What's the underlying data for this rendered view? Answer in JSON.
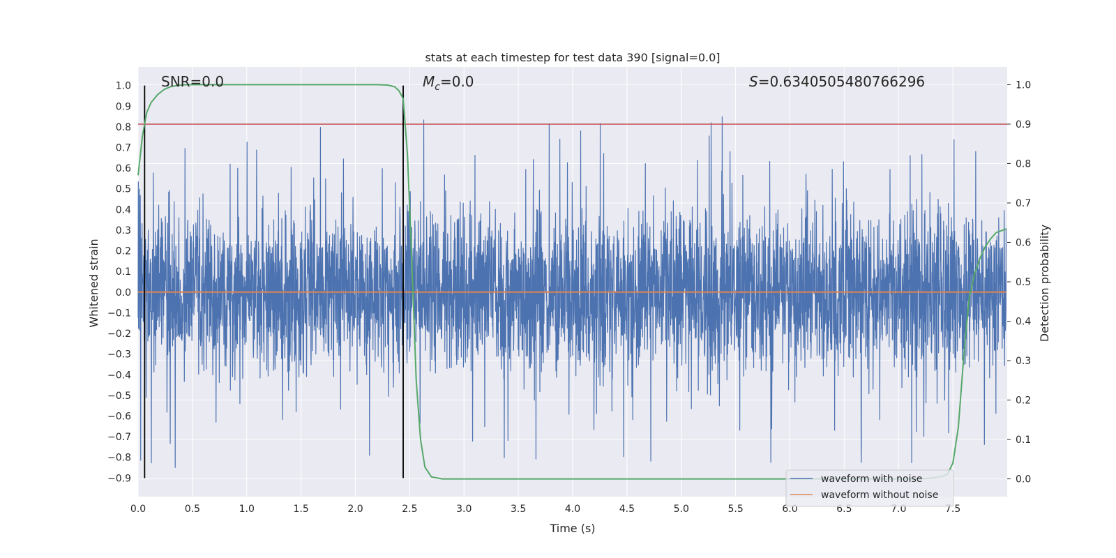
{
  "chart_data": {
    "type": "line",
    "title": "stats at each timestep for test data 390 [signal=0.0]",
    "xlabel": "Time (s)",
    "ylabel": "Whitened strain",
    "ylabel_right": "Detection probability",
    "xlim": [
      0.0,
      8.0
    ],
    "ylim": [
      -0.99,
      1.09
    ],
    "ylim_right": [
      -0.045,
      1.045
    ],
    "x_ticks": [
      "0.0",
      "0.5",
      "1.0",
      "1.5",
      "2.0",
      "2.5",
      "3.0",
      "3.5",
      "4.0",
      "4.5",
      "5.0",
      "5.5",
      "6.0",
      "6.5",
      "7.0",
      "7.5"
    ],
    "y_ticks": [
      "1.0",
      "0.9",
      "0.8",
      "0.7",
      "0.6",
      "0.5",
      "0.4",
      "0.3",
      "0.2",
      "0.1",
      "0.0",
      "−0.1",
      "−0.2",
      "−0.3",
      "−0.4",
      "−0.5",
      "−0.6",
      "−0.7",
      "−0.8",
      "−0.9"
    ],
    "y_ticks_right": [
      "1.0",
      "0.9",
      "0.8",
      "0.7",
      "0.6",
      "0.5",
      "0.4",
      "0.3",
      "0.2",
      "0.1",
      "0.0"
    ],
    "grid": true,
    "legend_position": "lower-right",
    "annotations": {
      "snr": "SNR=0.0",
      "mc": "M",
      "mc_sub": "c",
      "mc_value": "=0.0",
      "s": "S",
      "s_value": "=0.6340505480766296"
    },
    "threshold_right": 0.9,
    "vlines_x": [
      0.06,
      2.44
    ],
    "vlines_ymin": -0.9,
    "vlines_ymax": 1.0,
    "series": [
      {
        "name": "waveform with noise",
        "color": "#4c72b0",
        "kind": "noise",
        "note_generated": "dense whitened strain trace spanning roughly -0.9 to 1.0"
      },
      {
        "name": "waveform without noise",
        "color": "#dd8452",
        "x": [
          0.0,
          7.99
        ],
        "y": [
          0.0,
          0.0
        ]
      },
      {
        "name": "",
        "color": "#55a868",
        "axis": "right",
        "x": [
          0.0,
          0.04,
          0.08,
          0.12,
          0.18,
          0.24,
          0.3,
          0.36,
          0.44,
          0.6,
          1.0,
          1.5,
          2.0,
          2.2,
          2.3,
          2.36,
          2.4,
          2.44,
          2.48,
          2.52,
          2.56,
          2.6,
          2.64,
          2.7,
          2.8,
          3.0,
          4.0,
          5.0,
          6.0,
          7.0,
          7.2,
          7.3,
          7.4,
          7.45,
          7.5,
          7.55,
          7.6,
          7.65,
          7.7,
          7.75,
          7.8,
          7.85,
          7.9,
          7.95,
          7.99
        ],
        "y": [
          0.77,
          0.87,
          0.93,
          0.955,
          0.975,
          0.988,
          0.995,
          0.998,
          1.0,
          1.0,
          1.0,
          1.0,
          1.0,
          1.0,
          0.999,
          0.995,
          0.985,
          0.965,
          0.82,
          0.55,
          0.25,
          0.1,
          0.03,
          0.005,
          0.0,
          0.0,
          0.0,
          0.0,
          0.0,
          0.0,
          0.0,
          0.002,
          0.006,
          0.012,
          0.04,
          0.13,
          0.31,
          0.46,
          0.52,
          0.56,
          0.59,
          0.61,
          0.625,
          0.63,
          0.634
        ]
      },
      {
        "name": "",
        "color": "#c44e52",
        "axis": "right",
        "kind": "threshold",
        "y": 0.9
      }
    ]
  }
}
